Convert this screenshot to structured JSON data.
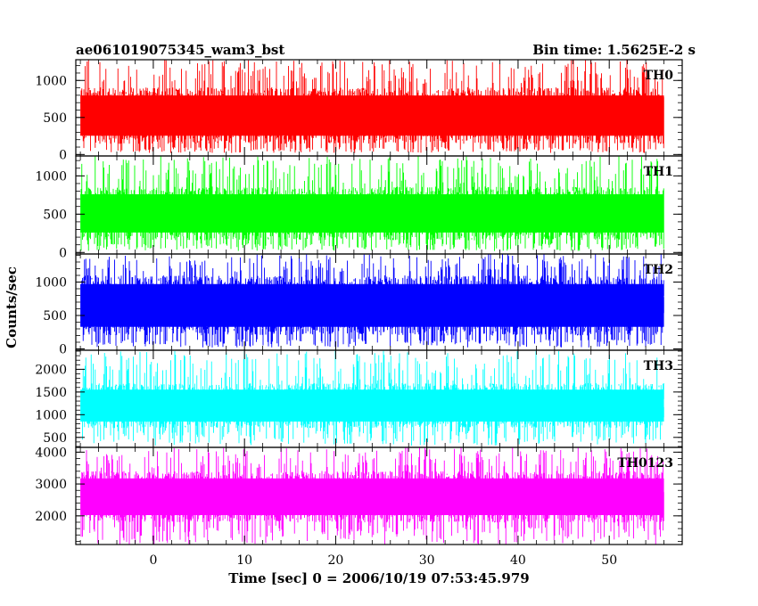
{
  "chart_data": {
    "type": "line",
    "title": "ae061019075345_wam3_bst",
    "bin_time_label": "Bin time: 1.5625E-2 s",
    "xlabel": "Time [sec] 0 = 2006/10/19 07:53:45.979",
    "ylabel": "Counts/sec",
    "xlim": [
      -8.5,
      58
    ],
    "data_x_range": [
      -8,
      56
    ],
    "xticks": [
      0,
      10,
      20,
      30,
      40,
      50
    ],
    "xtick_labels": [
      "0",
      "10",
      "20",
      "30",
      "40",
      "50"
    ],
    "panels": [
      {
        "name": "TH0",
        "color": "#ff0000",
        "ylim": [
          -20,
          1280
        ],
        "yticks": [
          0,
          500,
          1000
        ],
        "ytick_labels": [
          "0",
          "500",
          "1000"
        ],
        "typical_range": [
          100,
          950
        ],
        "peak_max": 1280,
        "floor_min": 20
      },
      {
        "name": "TH1",
        "color": "#00ff00",
        "ylim": [
          -20,
          1260
        ],
        "yticks": [
          0,
          500,
          1000
        ],
        "ytick_labels": [
          "0",
          "500",
          "1000"
        ],
        "typical_range": [
          120,
          900
        ],
        "peak_max": 1260,
        "floor_min": 20
      },
      {
        "name": "TH2",
        "color": "#0000ff",
        "ylim": [
          -20,
          1420
        ],
        "yticks": [
          0,
          500,
          1000
        ],
        "ytick_labels": [
          "0",
          "500",
          "1000"
        ],
        "typical_range": [
          150,
          1150
        ],
        "peak_max": 1420,
        "floor_min": 20
      },
      {
        "name": "TH3",
        "color": "#00ffff",
        "ylim": [
          280,
          2420
        ],
        "yticks": [
          500,
          1000,
          1500,
          2000
        ],
        "ytick_labels": [
          "500",
          "1000",
          "1500",
          "2000"
        ],
        "typical_range": [
          650,
          1750
        ],
        "peak_max": 2420,
        "floor_min": 320
      },
      {
        "name": "TH0123",
        "color": "#ff00ff",
        "ylim": [
          1100,
          4150
        ],
        "yticks": [
          2000,
          3000,
          4000
        ],
        "ytick_labels": [
          "2000",
          "3000",
          "4000"
        ],
        "typical_range": [
          1700,
          3500
        ],
        "peak_max": 4150,
        "floor_min": 1100
      }
    ]
  }
}
